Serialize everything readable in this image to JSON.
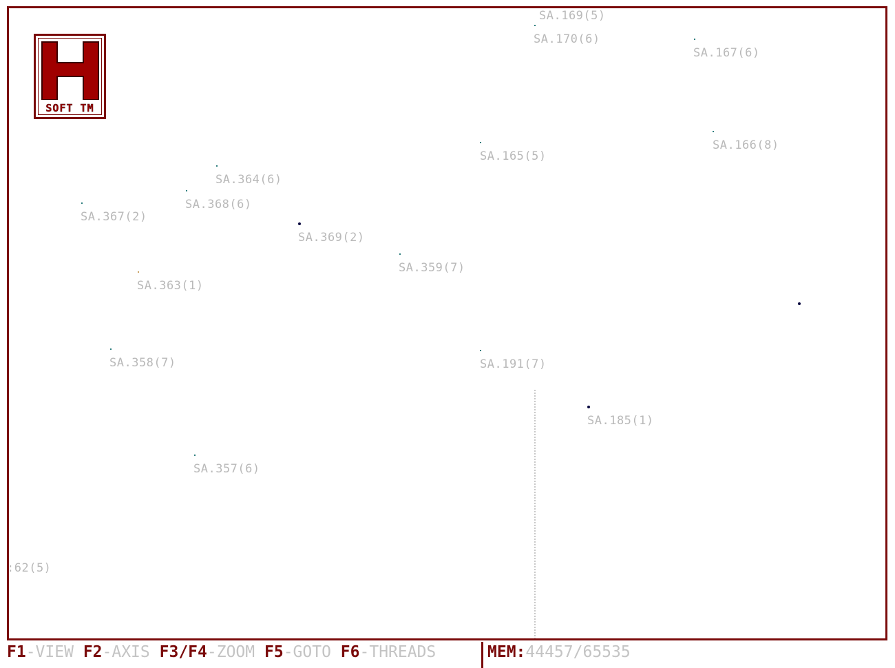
{
  "logo": {
    "letter": "H",
    "text": "SOFT TM"
  },
  "nodes": [
    {
      "label": "SA.169(5)"
    },
    {
      "label": "SA.170(6)"
    },
    {
      "label": "SA.167(6)"
    },
    {
      "label": "SA.166(8)"
    },
    {
      "label": "SA.165(5)"
    },
    {
      "label": "SA.364(6)"
    },
    {
      "label": "SA.368(6)"
    },
    {
      "label": "SA.367(2)"
    },
    {
      "label": "SA.369(2)"
    },
    {
      "label": "SA.359(7)"
    },
    {
      "label": "SA.363(1)"
    },
    {
      "label": "SA.358(7)"
    },
    {
      "label": "SA.191(7)"
    },
    {
      "label": "SA.185(1)"
    },
    {
      "label": "SA.357(6)"
    },
    {
      "label": ":62(5)"
    }
  ],
  "statusbar": {
    "f1_key": "F1",
    "f1_label": "-VIEW",
    "f2_key": "F2",
    "f2_label": "-AXIS",
    "f34_key": "F3/F4",
    "f34_label": "-ZOOM",
    "f5_key": "F5",
    "f5_label": "-GOTO",
    "f6_key": "F6",
    "f6_label": "-THREADS",
    "mem_label": "MEM:",
    "mem_value": "44457/65535"
  },
  "colors": {
    "frame": "#7a0a0a",
    "label": "#b9b9b9",
    "logo_red": "#a00000"
  }
}
